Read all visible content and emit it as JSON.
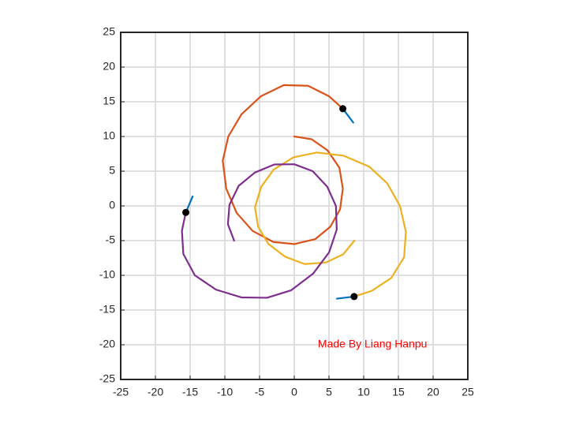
{
  "chart_data": {
    "type": "line",
    "xlim": [
      -25,
      25
    ],
    "ylim": [
      -25,
      25
    ],
    "xticks": [
      -25,
      -20,
      -15,
      -10,
      -5,
      0,
      5,
      10,
      15,
      20,
      25
    ],
    "yticks": [
      -25,
      -20,
      -15,
      -10,
      -5,
      0,
      5,
      10,
      15,
      20,
      25
    ],
    "grid": true,
    "series": [
      {
        "color": "#D95319",
        "x": [
          0,
          2.5,
          4.8,
          6.5,
          7,
          6.6,
          5.2,
          3,
          0,
          -3,
          -6,
          -8.3,
          -9.8,
          -10.3,
          -9.5,
          -7.6,
          -4.8,
          -1.5,
          2,
          5,
          7
        ],
        "values": [
          10,
          9.6,
          8,
          5.5,
          2.5,
          -0.5,
          -3,
          -4.8,
          -5.5,
          -5.2,
          -3.6,
          -1,
          2.5,
          6.5,
          10,
          13.2,
          15.8,
          17.4,
          17.3,
          15.8,
          14
        ]
      },
      {
        "color": "#EDB120",
        "x": [
          8.66,
          7.06,
          4.53,
          1.51,
          -1.33,
          -3.73,
          -5.2,
          -5.66,
          -4.76,
          -3.0,
          -0.12,
          3.28,
          7.07,
          10.78,
          13.41,
          15.23,
          16.08,
          15.82,
          13.98,
          11.18,
          8.62
        ],
        "values": [
          -5,
          -6.97,
          -8.16,
          -8.38,
          -7.31,
          -5.47,
          -3.0,
          -0.2,
          2.75,
          5.2,
          7.0,
          7.69,
          7.24,
          5.67,
          3.23,
          -0.02,
          -3.74,
          -7.4,
          -10.38,
          -12.23,
          -13.06
        ]
      },
      {
        "color": "#7E2F8E",
        "x": [
          -8.66,
          -9.56,
          -9.33,
          -8.01,
          -5.67,
          -2.87,
          0,
          2.66,
          4.76,
          6.0,
          6.12,
          5.02,
          2.73,
          -0.48,
          -3.91,
          -7.63,
          -11.28,
          -14.32,
          -15.98,
          -16.18,
          -15.62
        ],
        "values": [
          -5,
          -2.63,
          0.16,
          2.88,
          4.81,
          5.97,
          6.0,
          5.0,
          2.75,
          0,
          -3.4,
          -6.69,
          -9.74,
          -12.17,
          -13.23,
          -13.18,
          -12.06,
          -10.0,
          -6.92,
          -3.57,
          -0.94
        ]
      },
      {
        "color": "#0072BD",
        "x": [
          7,
          8.5
        ],
        "values": [
          14,
          12
        ]
      },
      {
        "color": "#0072BD",
        "x": [
          8.62,
          6.14
        ],
        "values": [
          -13.06,
          -13.36
        ]
      },
      {
        "color": "#0072BD",
        "x": [
          -15.62,
          -14.64
        ],
        "values": [
          -0.94,
          1.36
        ]
      },
      {
        "color": "#000000",
        "marker": "o",
        "x": [
          7,
          8.62,
          -15.62
        ],
        "values": [
          14,
          -13.06,
          -0.94
        ]
      }
    ],
    "annotations": [
      {
        "text": "Made By Liang Hanpu",
        "x": 3.4,
        "y": -20,
        "color": "#FF0000"
      }
    ]
  }
}
